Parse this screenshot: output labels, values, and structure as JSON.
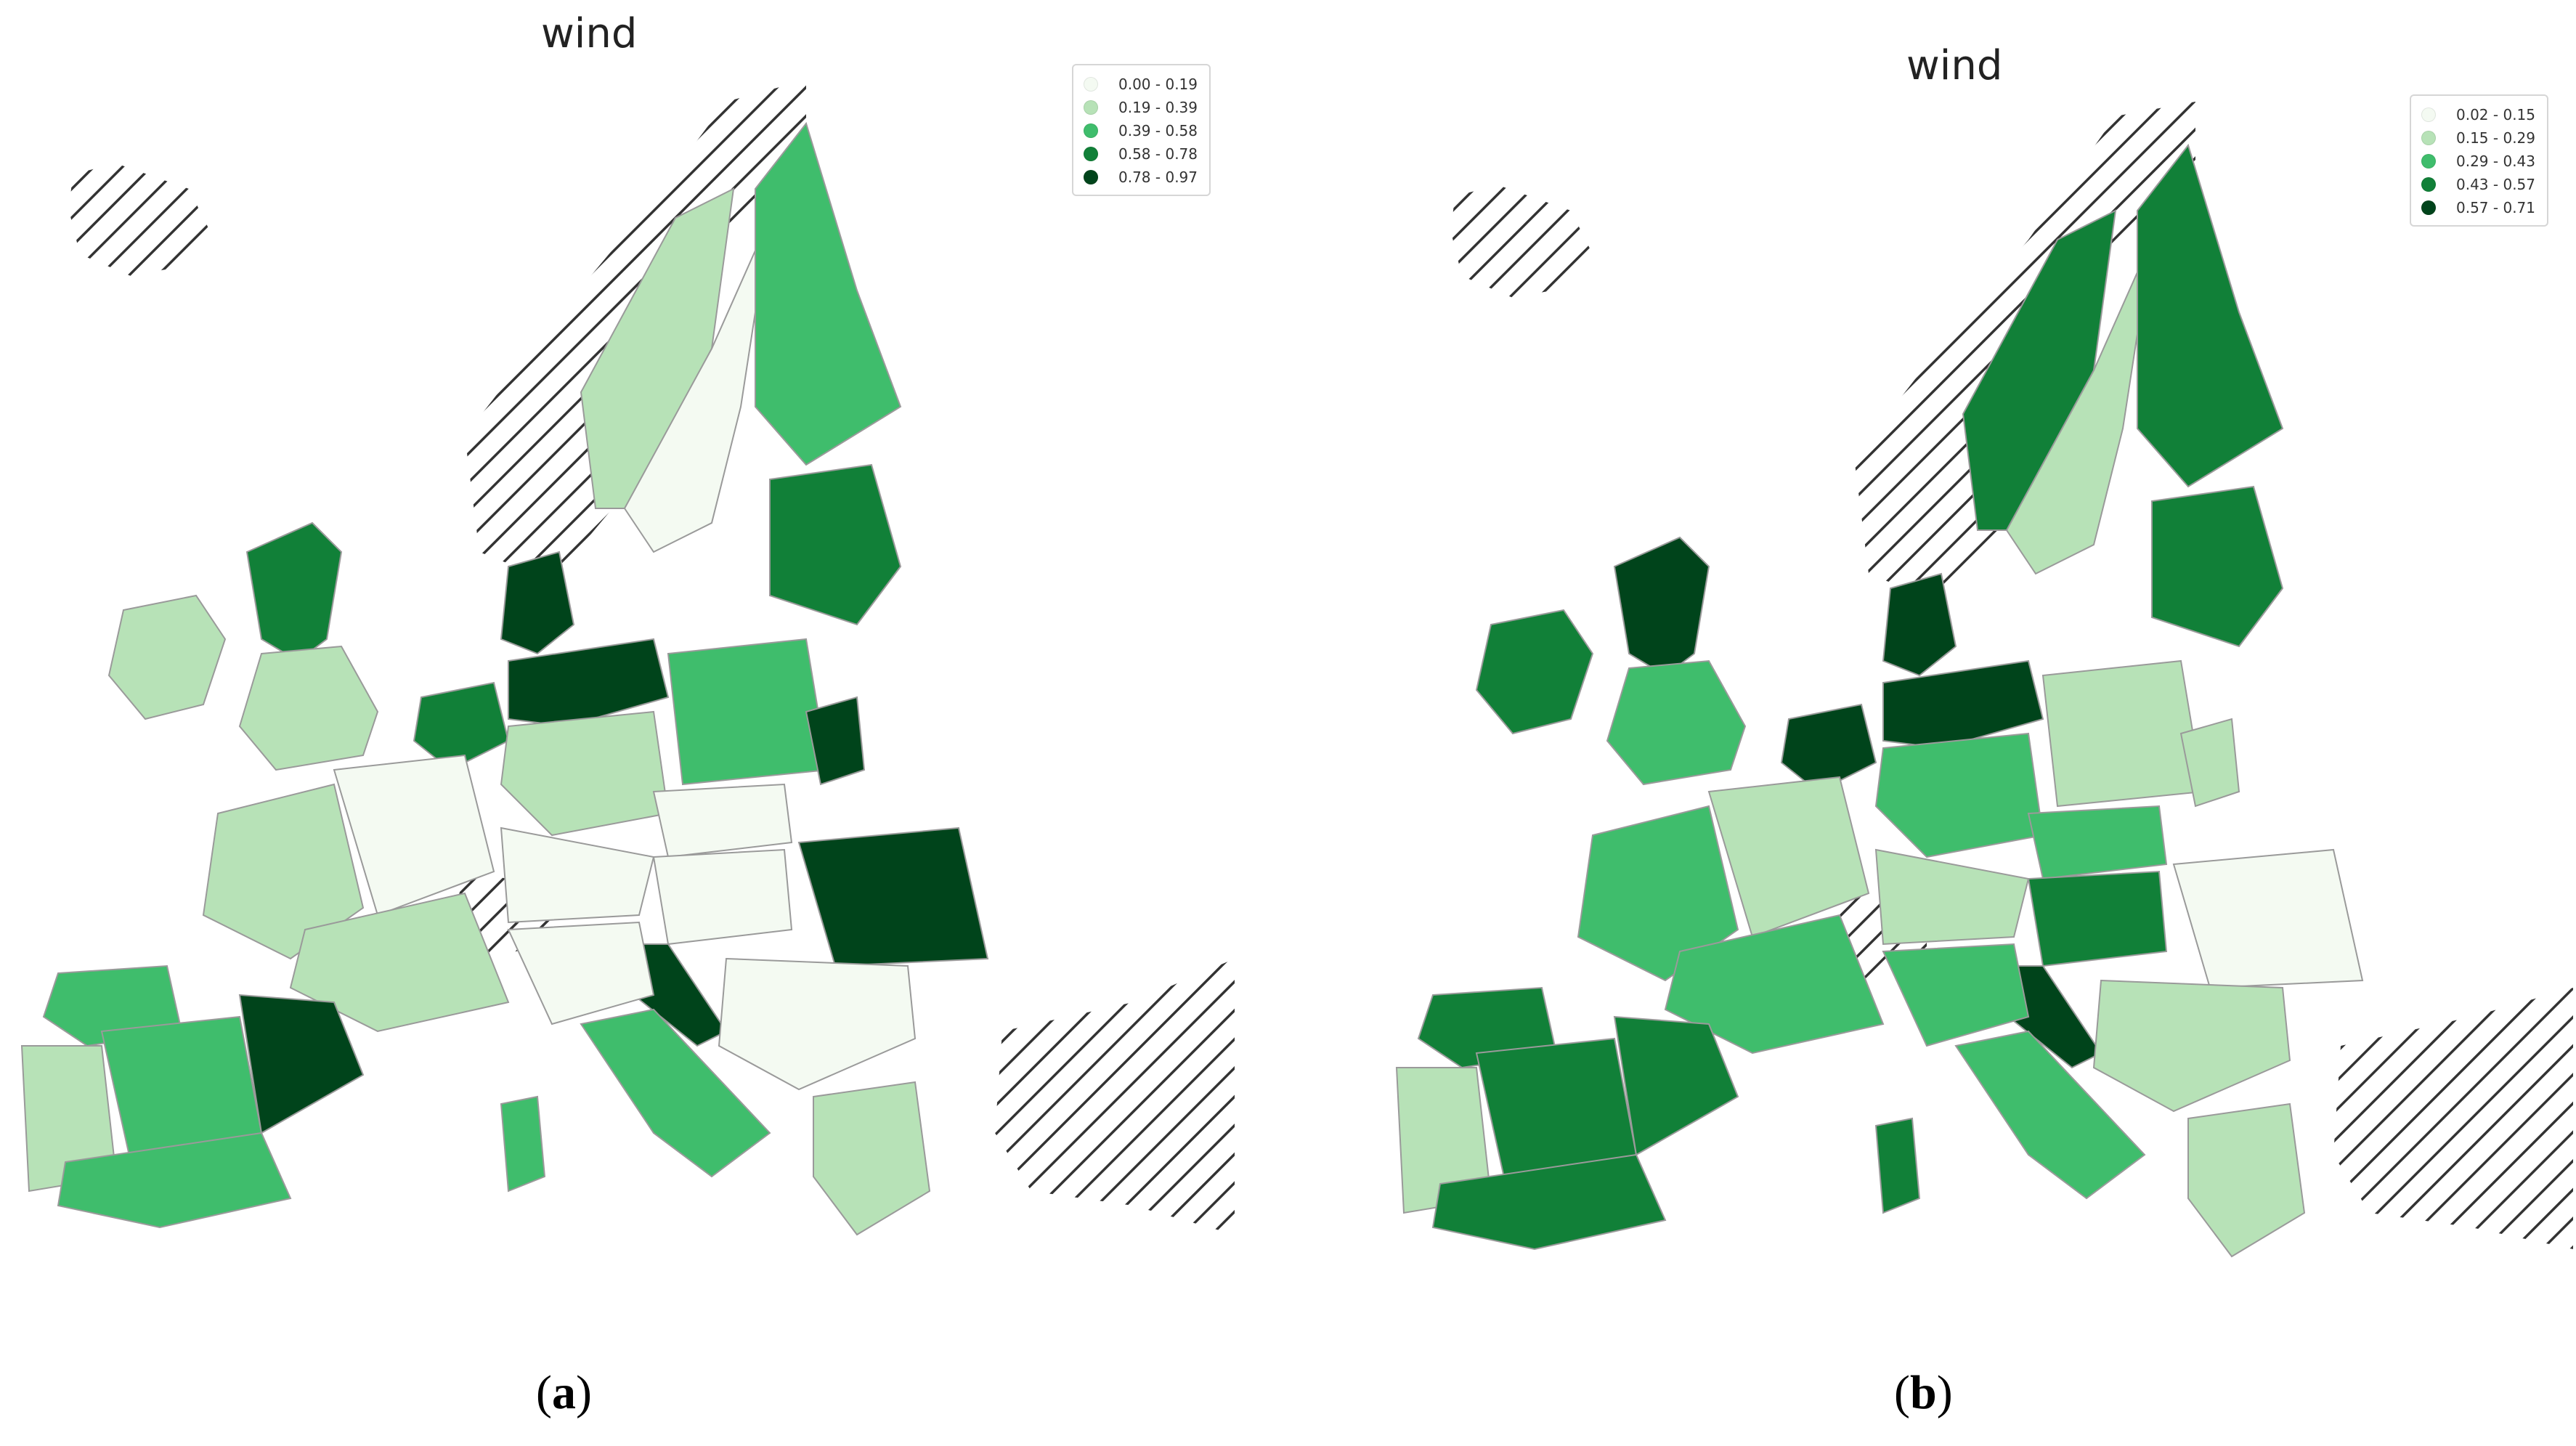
{
  "colors": {
    "class1": "#f4faf2",
    "class2": "#b7e2b7",
    "class3": "#3fbd6c",
    "class4": "#118038",
    "class5": "#00441b",
    "border": "#9a9a9a",
    "hatch": "#333333"
  },
  "panels": [
    {
      "id": "a",
      "title": "wind",
      "legend": [
        "0.00 - 0.19",
        "0.19 - 0.39",
        "0.39 - 0.58",
        "0.58 - 0.78",
        "0.78 - 0.97"
      ],
      "caption_label": "a"
    },
    {
      "id": "b",
      "title": "wind",
      "legend": [
        "0.02 - 0.15",
        "0.15 - 0.29",
        "0.29 - 0.43",
        "0.43 - 0.57",
        "0.57 - 0.71"
      ],
      "caption_label": "b"
    }
  ],
  "regions": {
    "a": {
      "iberia_nw": 3,
      "iberia_w": 2,
      "iberia_center": 3,
      "iberia_south": 3,
      "iberia_east": 5,
      "france_w": 2,
      "france_center": 1,
      "france_south": 2,
      "alps": 1,
      "uk_south": 2,
      "uk_north": 4,
      "ireland": 2,
      "benelux": 4,
      "germany_n": 5,
      "germany_center": 2,
      "poland": 3,
      "denmark": 5,
      "norway": 2,
      "sweden": 1,
      "finland": 3,
      "baltics": 4,
      "italy_n": 1,
      "italy_s": 3,
      "sardinia": 3,
      "croatia": 5,
      "hungary": 1,
      "romania": 5,
      "balkans": 1,
      "greece": 2,
      "poland_e": 5,
      "czech": 1
    },
    "b": {
      "iberia_nw": 4,
      "iberia_w": 2,
      "iberia_center": 4,
      "iberia_south": 4,
      "iberia_east": 4,
      "france_w": 3,
      "france_center": 2,
      "france_south": 3,
      "alps": 2,
      "uk_south": 3,
      "uk_north": 5,
      "ireland": 4,
      "benelux": 5,
      "germany_n": 5,
      "germany_center": 3,
      "poland": 2,
      "denmark": 5,
      "norway": 4,
      "sweden": 2,
      "finland": 4,
      "baltics": 4,
      "italy_n": 3,
      "italy_s": 3,
      "sardinia": 4,
      "croatia": 5,
      "hungary": 4,
      "romania": 1,
      "balkans": 2,
      "greece": 2,
      "poland_e": 2,
      "czech": 3
    }
  }
}
